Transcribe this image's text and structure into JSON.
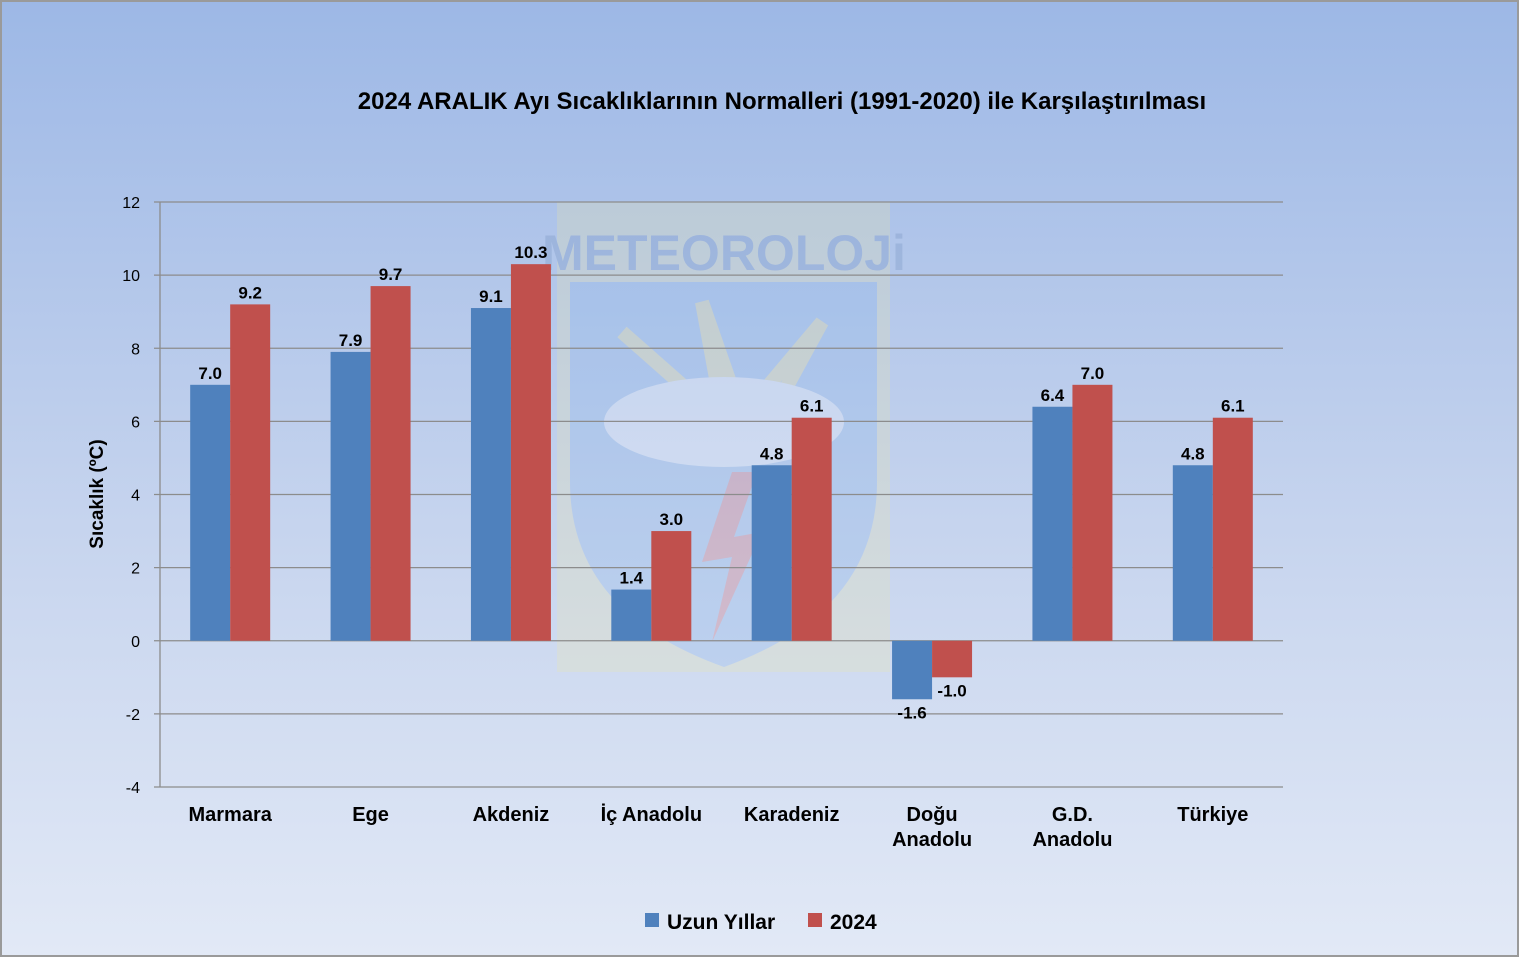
{
  "watermark": {
    "text": "METEOROLOJi"
  },
  "chart_data": {
    "type": "bar",
    "title": "2024 ARALIK Ayı Sıcaklıklarının Normalleri (1991-2020) ile Karşılaştırılması",
    "ylabel": "Sıcaklık (ºC)",
    "xlabel": "",
    "categories": [
      [
        "Marmara"
      ],
      [
        "Ege"
      ],
      [
        "Akdeniz"
      ],
      [
        "İç Anadolu"
      ],
      [
        "Karadeniz"
      ],
      [
        "Doğu",
        "Anadolu"
      ],
      [
        "G.D.",
        "Anadolu"
      ],
      [
        "Türkiye"
      ]
    ],
    "series": [
      {
        "name": "Uzun Yıllar",
        "color": "#4f81bd",
        "values": [
          7.0,
          7.9,
          9.1,
          1.4,
          4.8,
          -1.6,
          6.4,
          4.8
        ]
      },
      {
        "name": "2024",
        "color": "#c0504d",
        "values": [
          9.2,
          9.7,
          10.3,
          3.0,
          6.1,
          -1.0,
          7.0,
          6.1
        ]
      }
    ],
    "ylim": [
      -4,
      12
    ],
    "yticks": [
      12,
      10,
      8,
      6,
      4,
      2,
      0,
      -2,
      -4
    ],
    "grid": true,
    "legend": "bottom"
  }
}
